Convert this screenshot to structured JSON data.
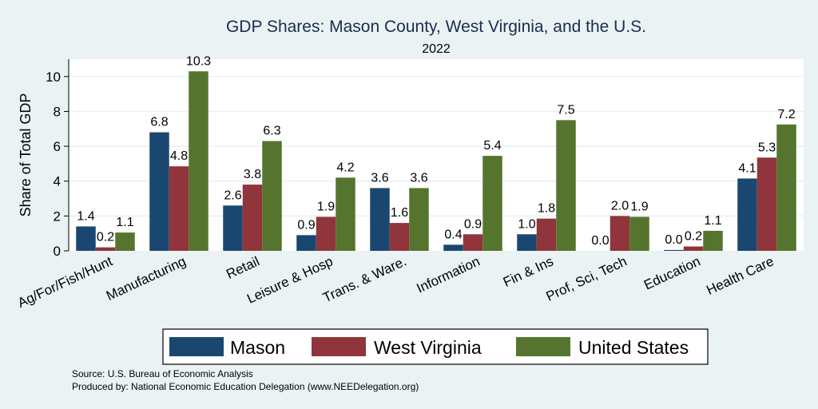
{
  "chart_data": {
    "type": "bar",
    "title": "GDP Shares: Mason County, West Virginia, and the U.S.",
    "subtitle": "2022",
    "ylabel": "Share of Total GDP",
    "xlabel": "",
    "ylim": [
      0,
      11
    ],
    "yticks": [
      0,
      2,
      4,
      6,
      8,
      10
    ],
    "grid": true,
    "legend_position": "bottom",
    "categories": [
      "Ag/For/Fish/Hunt",
      "Manufacturing",
      "Retail",
      "Leisure & Hosp",
      "Trans. & Ware.",
      "Information",
      "Fin & Ins",
      "Prof, Sci, Tech",
      "Education",
      "Health Care"
    ],
    "series": [
      {
        "name": "Mason",
        "color": "#1a476f",
        "values": [
          1.4,
          6.8,
          2.6,
          0.9,
          3.6,
          0.4,
          1.0,
          0.0,
          0.0,
          4.1
        ],
        "display_values": [
          1.4,
          6.8,
          2.6,
          0.9,
          3.6,
          0.35,
          0.95,
          0.0,
          0.05,
          4.15
        ]
      },
      {
        "name": "West Virginia",
        "color": "#90353b",
        "values": [
          0.2,
          4.8,
          3.8,
          1.9,
          1.6,
          0.9,
          1.8,
          2.0,
          0.2,
          5.3
        ],
        "display_values": [
          0.2,
          4.85,
          3.8,
          1.95,
          1.6,
          0.95,
          1.85,
          2.0,
          0.25,
          5.35
        ]
      },
      {
        "name": "United States",
        "color": "#55752f",
        "values": [
          1.1,
          10.3,
          6.3,
          4.2,
          3.6,
          5.4,
          7.5,
          1.9,
          1.1,
          7.2
        ],
        "display_values": [
          1.05,
          10.3,
          6.3,
          4.2,
          3.6,
          5.45,
          7.5,
          1.95,
          1.15,
          7.25
        ]
      }
    ],
    "labels": [
      [
        "1.4",
        "6.8",
        "2.6",
        "0.9",
        "3.6",
        "0.4",
        "1.0",
        "0.0",
        "0.0",
        "4.1"
      ],
      [
        "0.2",
        "4.8",
        "3.8",
        "1.9",
        "1.6",
        "0.9",
        "1.8",
        "2.0",
        "0.2",
        "5.3"
      ],
      [
        "1.1",
        "10.3",
        "6.3",
        "4.2",
        "3.6",
        "5.4",
        "7.5",
        "1.9",
        "1.1",
        "7.2"
      ]
    ]
  },
  "notes": {
    "source": "Source: U.S. Bureau of Economic Analysis",
    "produced_by": "Produced by: National Economic Education Delegation (www.NEEDelegation.org)"
  }
}
